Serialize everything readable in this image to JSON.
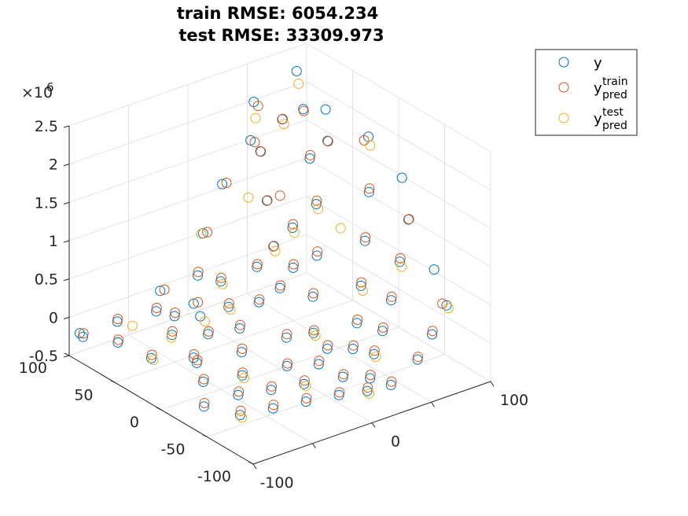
{
  "chart_data": {
    "type": "scatter",
    "view": "3d",
    "title": [
      "train RMSE: 6054.234",
      "test RMSE: 33309.973"
    ],
    "x_ticks": [
      "-100",
      "0",
      "100"
    ],
    "y_ticks": [
      "-100",
      "-50",
      "0",
      "50",
      "100"
    ],
    "z_ticks": [
      "-0.5",
      "0",
      "0.5",
      "1",
      "1.5",
      "2",
      "2.5"
    ],
    "z_exponent": "×10",
    "z_exponent_power": "6",
    "xlim": [
      -100,
      100
    ],
    "ylim": [
      -100,
      100
    ],
    "zlim": [
      -0.5,
      2.5
    ],
    "grid": true,
    "legend_position": "outside top-right",
    "legend": [
      {
        "label": "y",
        "sub": "",
        "sup": ""
      },
      {
        "label": "y",
        "sub": "pred",
        "sup": "train"
      },
      {
        "label": "y",
        "sub": "pred",
        "sup": "test"
      }
    ],
    "colors": [
      "#0072BD",
      "#D95319",
      "#EDB120"
    ],
    "series": [
      {
        "name": "y",
        "points": [
          [
            -60,
            40,
            -0.02
          ],
          [
            -45,
            20,
            0.05
          ],
          [
            -30,
            55,
            0.12
          ],
          [
            -20,
            30,
            0.2
          ],
          [
            -10,
            10,
            0.35
          ],
          [
            0,
            0,
            0.55
          ],
          [
            10,
            20,
            0.9
          ],
          [
            20,
            40,
            1.3
          ],
          [
            30,
            60,
            1.75
          ],
          [
            40,
            80,
            2.2
          ],
          [
            -80,
            -20,
            -0.1
          ],
          [
            -70,
            0,
            -0.05
          ],
          [
            -55,
            -30,
            -0.08
          ],
          [
            -40,
            -10,
            0.0
          ],
          [
            -25,
            -40,
            -0.05
          ],
          [
            -10,
            -20,
            0.1
          ],
          [
            5,
            -30,
            0.15
          ],
          [
            20,
            -10,
            0.4
          ],
          [
            35,
            5,
            0.75
          ],
          [
            50,
            25,
            1.2
          ],
          [
            60,
            45,
            1.6
          ],
          [
            70,
            65,
            2.05
          ],
          [
            80,
            85,
            2.35
          ],
          [
            -90,
            60,
            -0.1
          ],
          [
            -85,
            30,
            -0.12
          ],
          [
            -75,
            80,
            -0.05
          ],
          [
            -65,
            10,
            -0.08
          ],
          [
            -50,
            70,
            0.02
          ],
          [
            -35,
            85,
            0.1
          ],
          [
            -15,
            70,
            0.3
          ],
          [
            5,
            90,
            0.6
          ],
          [
            25,
            95,
            1.1
          ],
          [
            45,
            90,
            1.6
          ],
          [
            15,
            -60,
            0.1
          ],
          [
            30,
            -45,
            0.25
          ],
          [
            45,
            -30,
            0.55
          ],
          [
            60,
            -15,
            0.95
          ],
          [
            75,
            0,
            1.4
          ],
          [
            90,
            20,
            1.9
          ],
          [
            -5,
            -75,
            -0.05
          ],
          [
            10,
            -85,
            -0.08
          ],
          [
            25,
            -70,
            0.05
          ],
          [
            40,
            -60,
            0.2
          ],
          [
            55,
            -50,
            0.45
          ],
          [
            70,
            -40,
            0.8
          ],
          [
            85,
            -30,
            1.2
          ],
          [
            95,
            -10,
            1.55
          ],
          [
            -95,
            -40,
            -0.2
          ],
          [
            -80,
            -60,
            -0.25
          ],
          [
            -60,
            -70,
            -0.2
          ],
          [
            -40,
            -80,
            -0.15
          ],
          [
            -20,
            -90,
            -0.1
          ],
          [
            0,
            -95,
            -0.12
          ],
          [
            20,
            -95,
            -0.15
          ],
          [
            50,
            -85,
            -0.05
          ],
          [
            70,
            -75,
            0.1
          ],
          [
            90,
            -65,
            0.3
          ],
          [
            95,
            -45,
            0.6
          ],
          [
            -100,
            85,
            -0.15
          ],
          [
            -95,
            95,
            -0.2
          ],
          [
            -30,
            5,
            0.15
          ],
          [
            -15,
            45,
            0.4
          ],
          [
            0,
            25,
            0.65
          ],
          [
            15,
            5,
            0.7
          ],
          [
            30,
            25,
            1.0
          ],
          [
            -50,
            50,
            0.1
          ],
          [
            -40,
            35,
            0.15
          ],
          [
            60,
            75,
            1.9
          ],
          [
            75,
            45,
            1.75
          ],
          [
            85,
            60,
            2.0
          ],
          [
            -70,
            -45,
            -0.15
          ],
          [
            -50,
            -55,
            -0.12
          ],
          [
            -30,
            -65,
            -0.08
          ],
          [
            -10,
            -55,
            0.0
          ],
          [
            5,
            -45,
            0.05
          ]
        ]
      },
      {
        "name": "y_pred_train",
        "points": [
          [
            -58,
            42,
            0.0
          ],
          [
            -43,
            22,
            0.06
          ],
          [
            -28,
            53,
            0.14
          ],
          [
            -18,
            32,
            0.22
          ],
          [
            -8,
            12,
            0.36
          ],
          [
            2,
            2,
            0.56
          ],
          [
            12,
            22,
            0.88
          ],
          [
            22,
            42,
            1.28
          ],
          [
            32,
            62,
            1.72
          ],
          [
            42,
            78,
            2.15
          ],
          [
            -78,
            -18,
            -0.09
          ],
          [
            -68,
            2,
            -0.04
          ],
          [
            -53,
            -28,
            -0.07
          ],
          [
            -38,
            -8,
            0.02
          ],
          [
            -23,
            -38,
            -0.04
          ],
          [
            -8,
            -18,
            0.12
          ],
          [
            7,
            -28,
            0.16
          ],
          [
            22,
            -8,
            0.42
          ],
          [
            37,
            7,
            0.78
          ],
          [
            52,
            27,
            1.22
          ],
          [
            62,
            47,
            1.62
          ],
          [
            72,
            67,
            2.0
          ],
          [
            -88,
            62,
            -0.09
          ],
          [
            -83,
            32,
            -0.1
          ],
          [
            -73,
            82,
            -0.04
          ],
          [
            -63,
            12,
            -0.06
          ],
          [
            -48,
            72,
            0.04
          ],
          [
            -33,
            83,
            0.12
          ],
          [
            -13,
            72,
            0.32
          ],
          [
            7,
            88,
            0.62
          ],
          [
            27,
            93,
            1.12
          ],
          [
            47,
            88,
            1.58
          ],
          [
            17,
            -58,
            0.12
          ],
          [
            32,
            -43,
            0.27
          ],
          [
            47,
            -28,
            0.57
          ],
          [
            62,
            -13,
            0.97
          ],
          [
            77,
            2,
            1.42
          ],
          [
            88,
            22,
            1.85
          ],
          [
            -3,
            -73,
            -0.04
          ],
          [
            12,
            -83,
            -0.06
          ],
          [
            27,
            -68,
            0.07
          ],
          [
            42,
            -58,
            0.22
          ],
          [
            57,
            -48,
            0.47
          ],
          [
            72,
            -38,
            0.82
          ],
          [
            87,
            -28,
            1.18
          ],
          [
            -93,
            -38,
            -0.18
          ],
          [
            -78,
            -58,
            -0.22
          ],
          [
            -58,
            -68,
            -0.18
          ],
          [
            -38,
            -78,
            -0.13
          ],
          [
            -18,
            -88,
            -0.09
          ],
          [
            2,
            -93,
            -0.1
          ],
          [
            22,
            -93,
            -0.13
          ],
          [
            52,
            -83,
            -0.04
          ],
          [
            72,
            -73,
            0.12
          ],
          [
            88,
            -63,
            0.32
          ],
          [
            -28,
            7,
            0.17
          ],
          [
            -13,
            47,
            0.42
          ],
          [
            2,
            27,
            0.66
          ],
          [
            17,
            7,
            0.72
          ],
          [
            32,
            27,
            1.02
          ],
          [
            -48,
            52,
            0.12
          ],
          [
            62,
            77,
            1.88
          ],
          [
            77,
            47,
            1.72
          ],
          [
            -68,
            -43,
            -0.13
          ],
          [
            -48,
            -53,
            -0.1
          ],
          [
            -28,
            -63,
            -0.06
          ],
          [
            -8,
            -53,
            0.02
          ],
          [
            7,
            -43,
            0.07
          ],
          [
            -98,
            87,
            -0.13
          ],
          [
            35,
            45,
            1.25
          ]
        ]
      },
      {
        "name": "y_pred_test",
        "points": [
          [
            -62,
            38,
            -0.03
          ],
          [
            -20,
            28,
            0.18
          ],
          [
            10,
            18,
            0.85
          ],
          [
            40,
            78,
            2.0
          ],
          [
            -55,
            -32,
            -0.1
          ],
          [
            5,
            -32,
            0.13
          ],
          [
            50,
            23,
            1.15
          ],
          [
            -85,
            28,
            -0.13
          ],
          [
            5,
            92,
            0.58
          ],
          [
            45,
            -32,
            0.5
          ],
          [
            90,
            18,
            1.8
          ],
          [
            25,
            -72,
            0.03
          ],
          [
            70,
            -42,
            0.75
          ],
          [
            -80,
            -62,
            -0.27
          ],
          [
            0,
            -97,
            -0.14
          ],
          [
            90,
            -67,
            0.28
          ],
          [
            -15,
            43,
            0.38
          ],
          [
            30,
            23,
            0.95
          ],
          [
            60,
            73,
            1.85
          ],
          [
            -30,
            -67,
            -0.09
          ],
          [
            80,
            83,
            2.2
          ],
          [
            -40,
            30,
            0.12
          ],
          [
            20,
            60,
            1.2
          ],
          [
            -70,
            70,
            -0.06
          ],
          [
            55,
            5,
            1.0
          ]
        ]
      }
    ]
  }
}
